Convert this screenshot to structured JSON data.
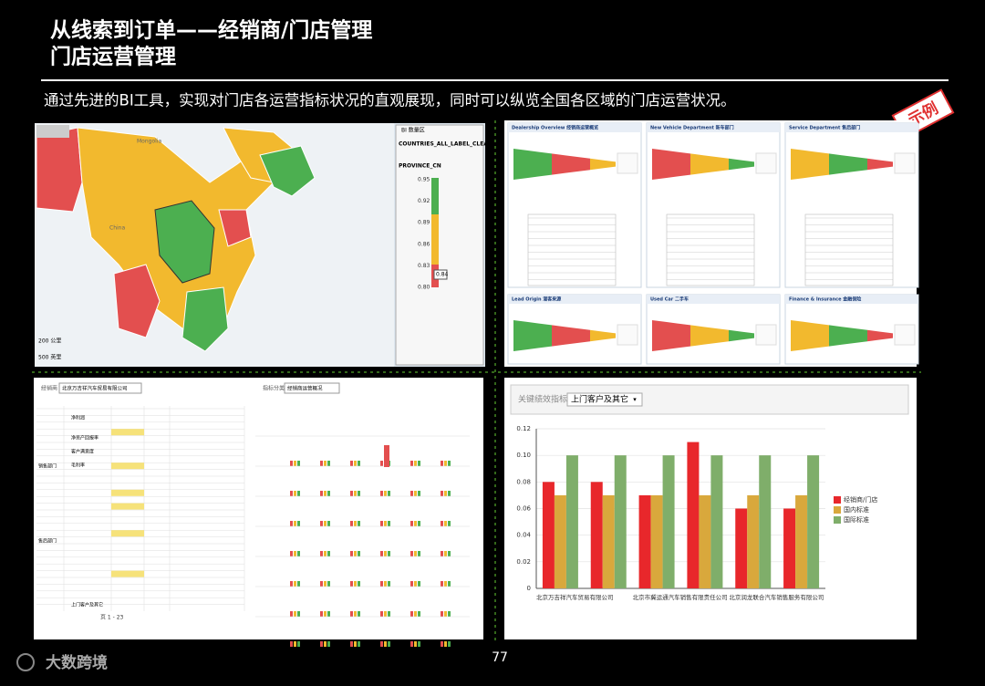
{
  "header": {
    "title": "从线索到订单——经销商/门店管理",
    "subtitle_title": "门店运营管理",
    "intro": "通过先进的BI工具，实现对门店各运营指标状况的直观展现，同时可以纵览全国各区域的门店运营状况。",
    "stamp": "示例"
  },
  "map_panel": {
    "labels": [
      "Mongolia",
      "China"
    ],
    "legend_title": "BI 数量区",
    "layer_1": "COUNTRIES_ALL_LABEL_CLEAR",
    "layer_2": "PROVINCE_CN",
    "scale_labels": [
      "0.95",
      "0.92",
      "0.89",
      "0.86",
      "0.83",
      "0.80"
    ],
    "tooltip": "0.84",
    "distance_1": "200 公里",
    "distance_2": "500 英里"
  },
  "dashboard_panel": {
    "tiles": [
      "Dealership Overview 经销商运营概览",
      "New Vehicle Department 新车部门",
      "Service Department 售后部门",
      "Lead Origin 潜客来源",
      "Used Car 二手车",
      "Finance & Insurance 金融保险"
    ]
  },
  "table_panel": {
    "filter_label": "经销商",
    "filter_value": "北京万吉祥汽车贸易有限公司",
    "chart_filter_label": "指标分类",
    "chart_filter_value": "经销商运营概况",
    "rows": [
      "净利润",
      "净资产回报率",
      "客户满意度",
      "毛利率",
      "销售部门",
      "售后部门",
      "上门客户及其它"
    ],
    "pager": "页 1 - 23"
  },
  "chart_data": {
    "type": "bar",
    "filter_label": "关键绩效指标",
    "filter_value": "上门客户及其它",
    "categories": [
      "北京万吉祥汽车贸易有限公司",
      null,
      "北京市冀运通汽车销售有限责任公司",
      null,
      "北京润龙联合汽车销售服务有限公司",
      null
    ],
    "series": [
      {
        "name": "经销商/门店",
        "color": "#e8272b",
        "values": [
          0.08,
          0.08,
          0.07,
          0.11,
          0.06,
          0.06
        ]
      },
      {
        "name": "国内标准",
        "color": "#d9a83c",
        "values": [
          0.07,
          0.07,
          0.07,
          0.07,
          0.07,
          0.07
        ]
      },
      {
        "name": "国际标准",
        "color": "#7fae6a",
        "values": [
          0.1,
          0.1,
          0.1,
          0.1,
          0.1,
          0.1
        ]
      }
    ],
    "ylim": [
      0,
      0.12
    ],
    "yticks": [
      0,
      0.02,
      0.04,
      0.06,
      0.08,
      {
        "value": 0.1,
        "label": "0.10"
      },
      0.12
    ],
    "grid": true,
    "legend": "right"
  },
  "footer": {
    "page_number": "77",
    "logo": "大数跨境"
  }
}
